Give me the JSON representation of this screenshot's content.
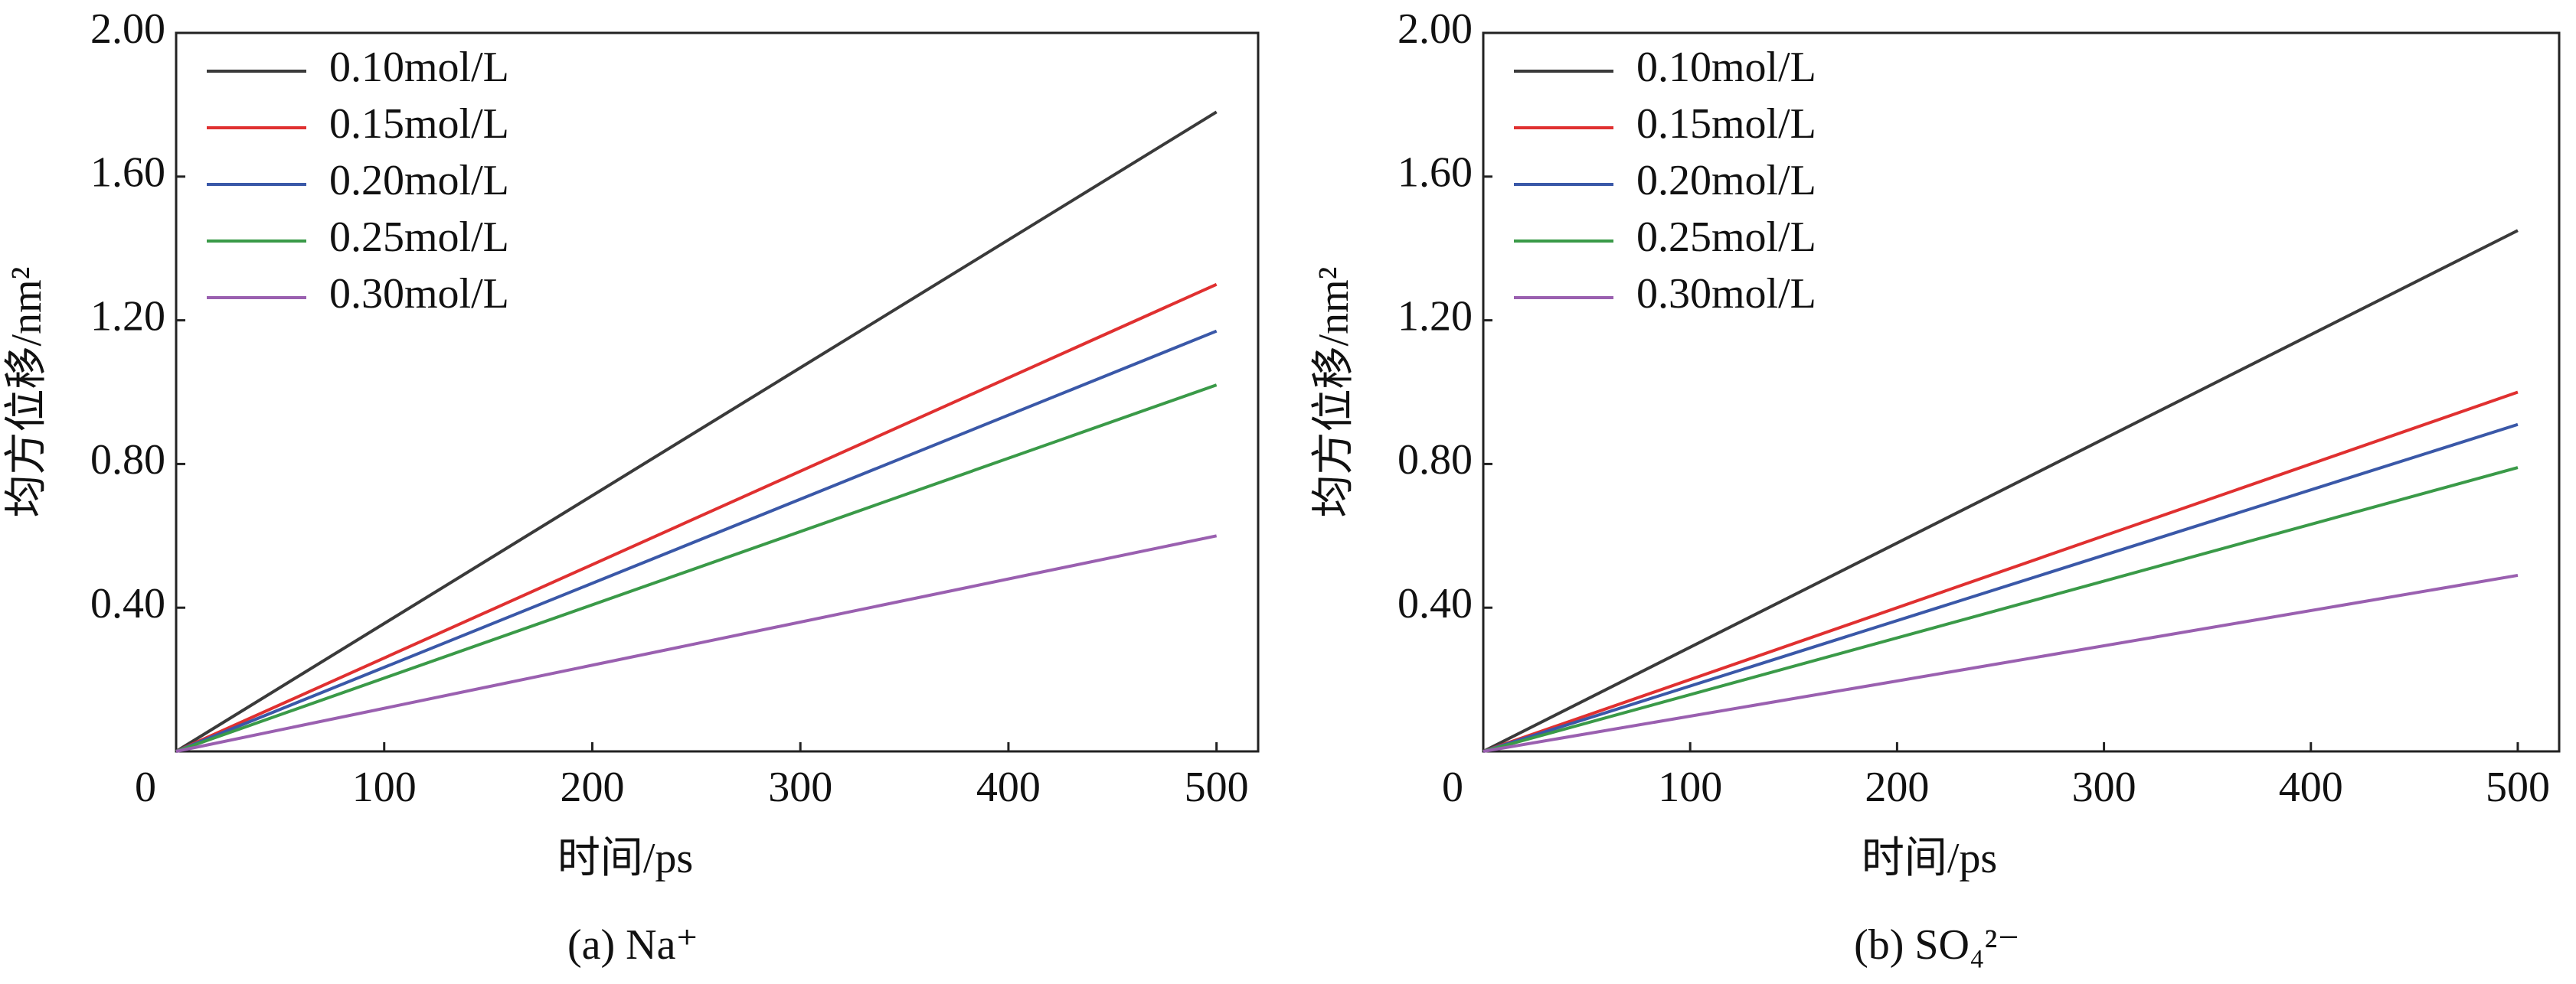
{
  "chart_data": [
    {
      "type": "line",
      "title": "(a) Na⁺",
      "xlabel": "时间/ps",
      "ylabel": "均方位移/nm²",
      "x": [
        0,
        500
      ],
      "xlim": [
        0,
        520
      ],
      "xticks": [
        0,
        100,
        200,
        300,
        400,
        500
      ],
      "ylim": [
        0,
        2
      ],
      "yticks": [
        {
          "value": 0.4,
          "label": "0.40"
        },
        {
          "value": 0.8,
          "label": "0.80"
        },
        {
          "value": 1.2,
          "label": "1.20"
        },
        {
          "value": 1.6,
          "label": "1.60"
        },
        {
          "value": 2,
          "label": "2.00"
        }
      ],
      "legend": "upper left",
      "series": [
        {
          "name": "0.10mol/L",
          "color": "#3a3a3a",
          "values": [
            0,
            1.78
          ]
        },
        {
          "name": "0.15mol/L",
          "color": "#e03030",
          "values": [
            0,
            1.3
          ]
        },
        {
          "name": "0.20mol/L",
          "color": "#3a58a8",
          "values": [
            0,
            1.17
          ]
        },
        {
          "name": "0.25mol/L",
          "color": "#3a9a48",
          "values": [
            0,
            1.02
          ]
        },
        {
          "name": "0.30mol/L",
          "color": "#9a60b0",
          "values": [
            0,
            0.6
          ]
        }
      ]
    },
    {
      "type": "line",
      "title": "(b) SO₄²⁻",
      "xlabel": "时间/ps",
      "ylabel": "均方位移/nm²",
      "x": [
        0,
        500
      ],
      "xlim": [
        0,
        520
      ],
      "xticks": [
        0,
        100,
        200,
        300,
        400,
        500
      ],
      "ylim": [
        0,
        2
      ],
      "yticks": [
        {
          "value": 0.4,
          "label": "0.40"
        },
        {
          "value": 0.8,
          "label": "0.80"
        },
        {
          "value": 1.2,
          "label": "1.20"
        },
        {
          "value": 1.6,
          "label": "1.60"
        },
        {
          "value": 2,
          "label": "2.00"
        }
      ],
      "legend": "upper left",
      "series": [
        {
          "name": "0.10mol/L",
          "color": "#3a3a3a",
          "values": [
            0,
            1.45
          ]
        },
        {
          "name": "0.15mol/L",
          "color": "#e03030",
          "values": [
            0,
            1.0
          ]
        },
        {
          "name": "0.20mol/L",
          "color": "#3a58a8",
          "values": [
            0,
            0.91
          ]
        },
        {
          "name": "0.25mol/L",
          "color": "#3a9a48",
          "values": [
            0,
            0.79
          ]
        },
        {
          "name": "0.30mol/L",
          "color": "#9a60b0",
          "values": [
            0,
            0.49
          ]
        }
      ]
    }
  ]
}
